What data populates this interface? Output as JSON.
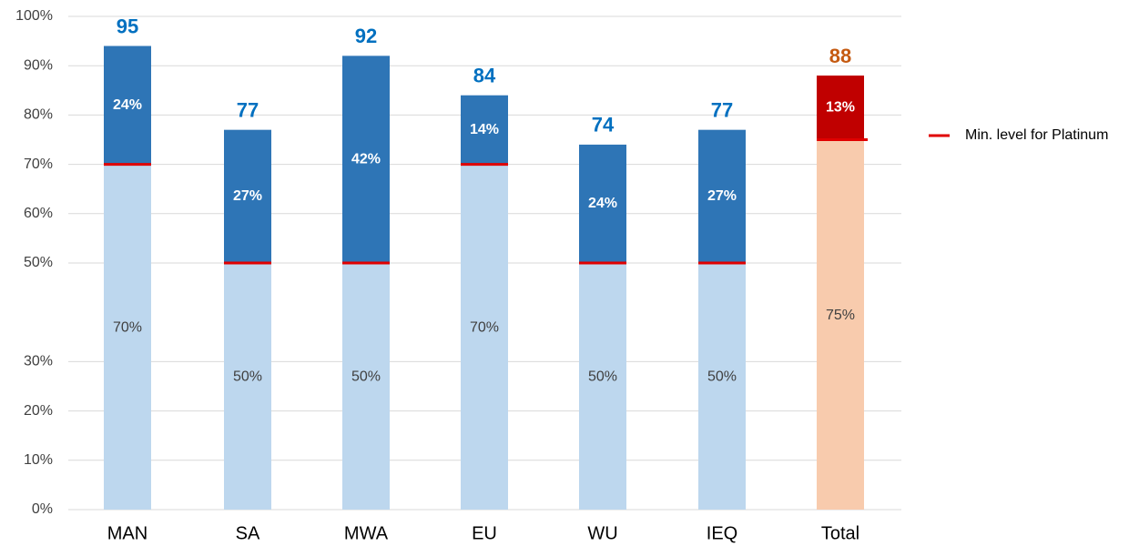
{
  "chart_data": {
    "type": "stacked_bar",
    "categories": [
      "MAN",
      "SA",
      "MWA",
      "EU",
      "WU",
      "IEQ",
      "Total"
    ],
    "series": [
      {
        "name": "Min. level for Platinum",
        "colors": [
          "#bdd7ee",
          "#bdd7ee",
          "#bdd7ee",
          "#bdd7ee",
          "#bdd7ee",
          "#bdd7ee",
          "#f8cbad"
        ],
        "line_color": "#e00000",
        "values": [
          70,
          50,
          50,
          70,
          50,
          50,
          75
        ],
        "value_labels": [
          "70%",
          "50%",
          "50%",
          "70%",
          "50%",
          "50%",
          "75%"
        ]
      },
      {
        "colors": [
          "#2e75b6",
          "#2e75b6",
          "#2e75b6",
          "#2e75b6",
          "#2e75b6",
          "#2e75b6",
          "#c00000"
        ],
        "values": [
          24,
          27,
          42,
          14,
          24,
          27,
          13
        ],
        "value_labels": [
          "24%",
          "27%",
          "42%",
          "14%",
          "24%",
          "27%",
          "13%"
        ]
      }
    ],
    "totals": [
      95,
      77,
      92,
      84,
      74,
      77,
      88
    ],
    "total_colors": [
      "#0070c0",
      "#0070c0",
      "#0070c0",
      "#0070c0",
      "#0070c0",
      "#0070c0",
      "#c55a11"
    ],
    "ylim": [
      0,
      100
    ],
    "yticks": [
      {
        "value": 0,
        "label": "0%"
      },
      {
        "value": 10,
        "label": "10%"
      },
      {
        "value": 20,
        "label": "20%"
      },
      {
        "value": 30,
        "label": "30%"
      },
      {
        "value": 50,
        "label": "50%"
      },
      {
        "value": 60,
        "label": "60%"
      },
      {
        "value": 70,
        "label": "70%"
      },
      {
        "value": 80,
        "label": "80%"
      },
      {
        "value": 90,
        "label": "90%"
      },
      {
        "value": 100,
        "label": "100%"
      }
    ],
    "grid": true
  }
}
